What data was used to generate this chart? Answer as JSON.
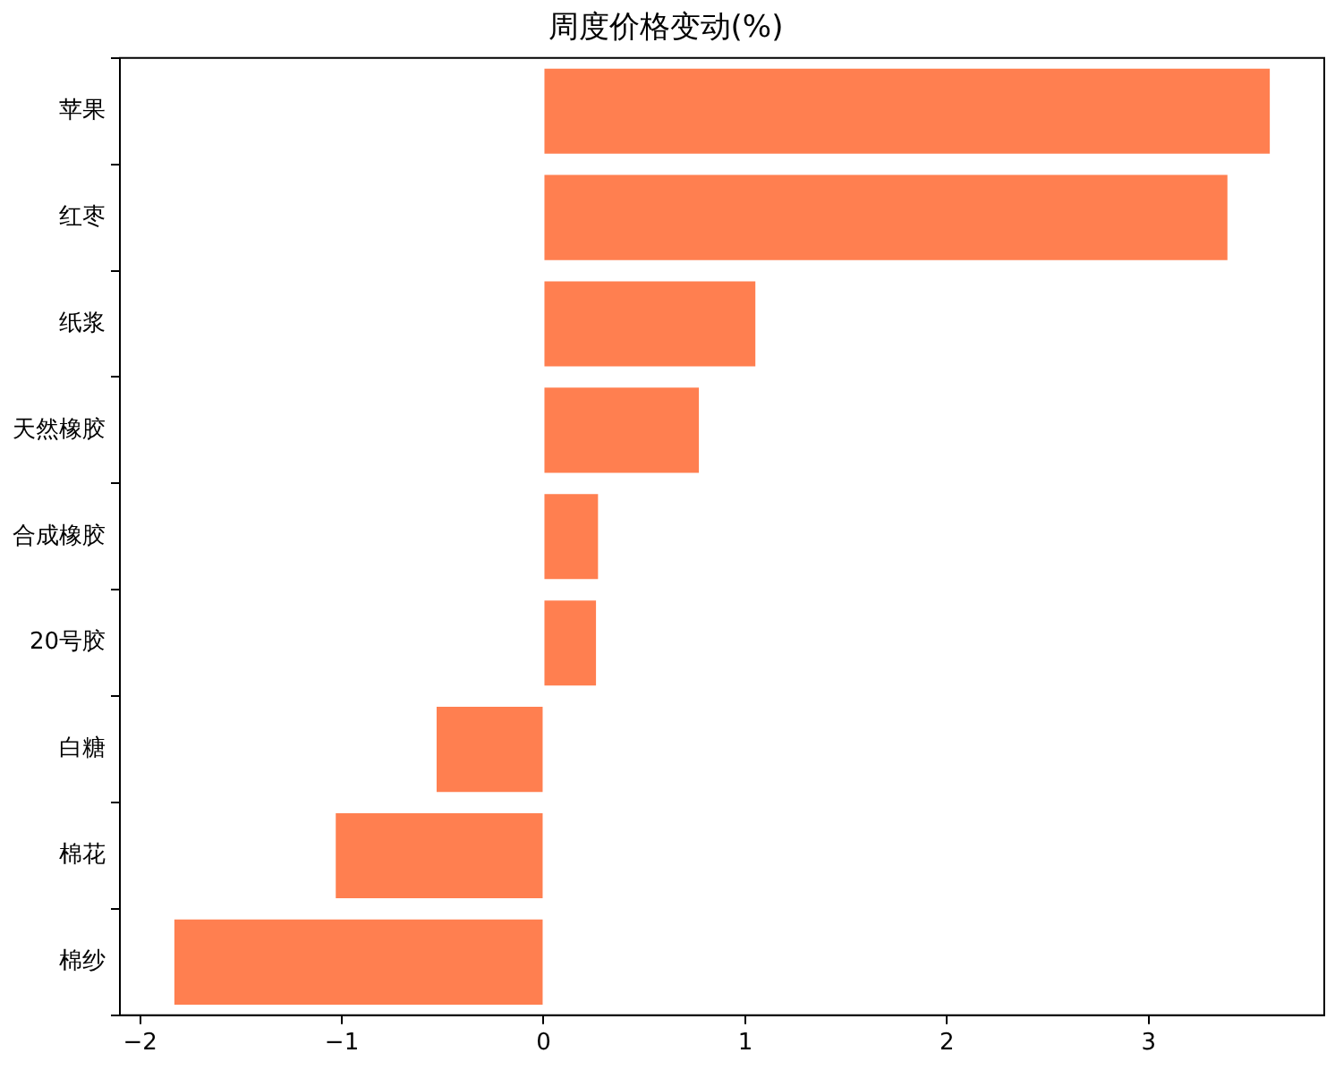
{
  "chart_data": {
    "type": "bar",
    "orientation": "horizontal",
    "title": "周度价格变动(%)",
    "categories": [
      "苹果",
      "红枣",
      "纸浆",
      "天然橡胶",
      "合成橡胶",
      "20号胶",
      "白糖",
      "棉花",
      "棉纱"
    ],
    "values": [
      3.6,
      3.39,
      1.05,
      0.77,
      0.27,
      0.26,
      -0.53,
      -1.03,
      -1.83
    ],
    "color": "#ff7f50",
    "xlim": [
      -2.1,
      3.87
    ],
    "xticks": [
      -2,
      -1,
      0,
      1,
      2,
      3
    ],
    "grid": false,
    "legend": false
  }
}
